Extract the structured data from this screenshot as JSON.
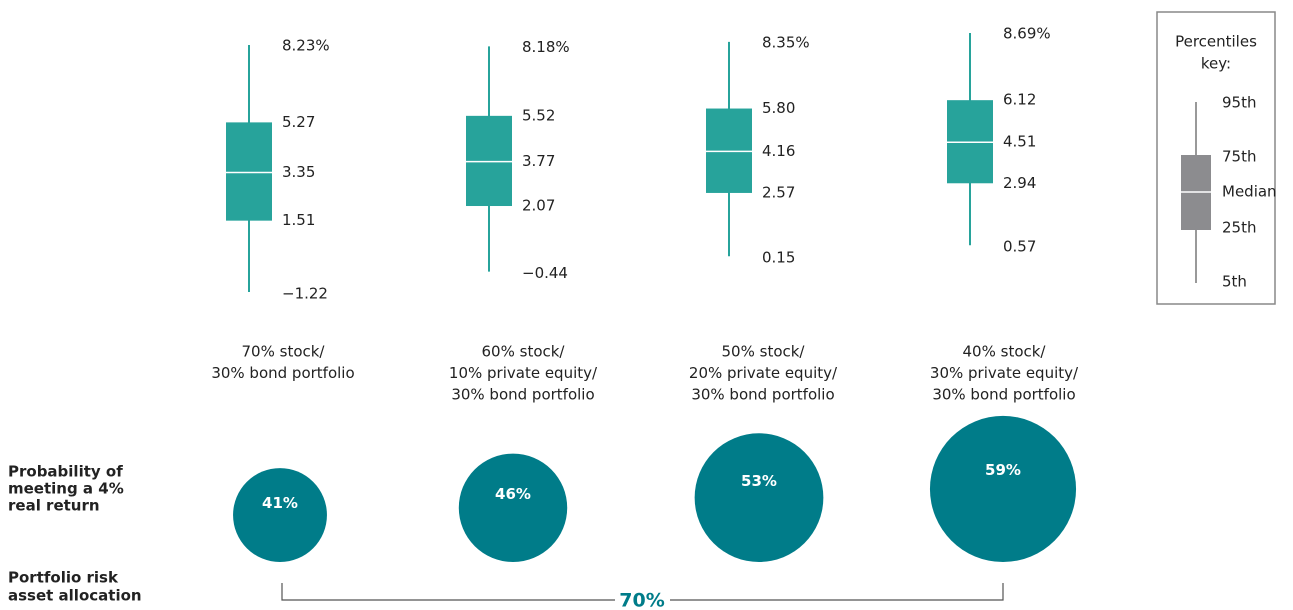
{
  "chart_data": {
    "type": "box",
    "color": "#27a39b",
    "categories": [
      [
        "70% stock/",
        "30% bond portfolio"
      ],
      [
        "60% stock/",
        "10% private equity/",
        "30% bond portfolio"
      ],
      [
        "50% stock/",
        "20% private equity/",
        "30% bond portfolio"
      ],
      [
        "40% stock/",
        "30% private equity/",
        "30% bond portfolio"
      ]
    ],
    "stats": [
      {
        "values": [
          -1.22,
          1.51,
          3.35,
          5.27,
          8.23
        ],
        "value_labels": [
          "−1.22",
          "1.51",
          "3.35",
          "5.27",
          "8.23%"
        ]
      },
      {
        "values": [
          -0.44,
          2.07,
          3.77,
          5.52,
          8.18
        ],
        "value_labels": [
          "−0.44",
          "2.07",
          "3.77",
          "5.52",
          "8.18%"
        ]
      },
      {
        "values": [
          0.15,
          2.57,
          4.16,
          5.8,
          8.35
        ],
        "value_labels": [
          "0.15",
          "2.57",
          "4.16",
          "5.80",
          "8.35%"
        ]
      },
      {
        "values": [
          0.57,
          2.94,
          4.51,
          6.12,
          8.69
        ],
        "value_labels": [
          "0.57",
          "2.94",
          "4.51",
          "6.12",
          "8.69%"
        ]
      }
    ],
    "probability": {
      "label": [
        "Probability of",
        "meeting a 4%",
        "real return"
      ],
      "color": "#007c89",
      "values": [
        41,
        46,
        53,
        59
      ],
      "value_labels": [
        "41%",
        "46%",
        "53%",
        "59%"
      ]
    },
    "allocation": {
      "label": [
        "Portfolio risk",
        "asset allocation"
      ],
      "value": 70,
      "value_label": "70%"
    },
    "key": {
      "title": [
        "Percentiles",
        "key:"
      ],
      "labels": [
        "95th",
        "75th",
        "Median",
        "25th",
        "5th"
      ]
    }
  }
}
